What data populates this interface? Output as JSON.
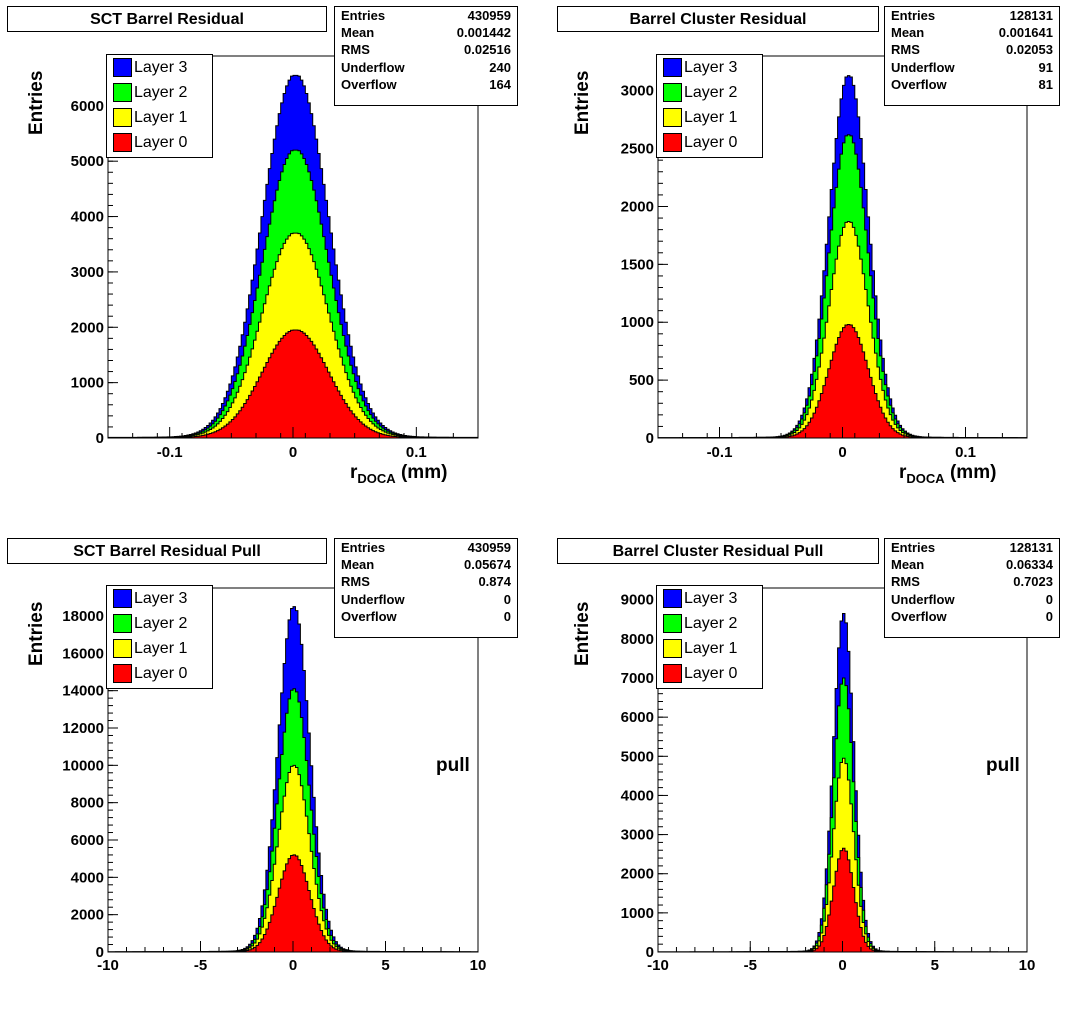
{
  "chart_data": [
    {
      "type": "area",
      "stacked": true,
      "title": "SCT Barrel Residual",
      "xlabel": "r",
      "xlabel_sub": "DOCA",
      "xlabel_unit": "(mm)",
      "ylabel": "Entries",
      "xlim": [
        -0.15,
        0.15
      ],
      "ylim": [
        0,
        6900
      ],
      "xticks": [
        -0.1,
        0,
        0.1
      ],
      "xtick_labels": [
        "-0.1",
        "0",
        "0.1"
      ],
      "yticks": [
        0,
        1000,
        2000,
        3000,
        4000,
        5000,
        6000
      ],
      "ytick_labels": [
        "0",
        "1000",
        "2000",
        "3000",
        "4000",
        "5000",
        "6000"
      ],
      "stats": [
        {
          "label": "Entries",
          "value": "430959"
        },
        {
          "label": "Mean",
          "value": "0.001442"
        },
        {
          "label": "RMS",
          "value": "0.02516"
        },
        {
          "label": "Underflow",
          "value": "240"
        },
        {
          "label": "Overflow",
          "value": "164"
        }
      ],
      "legend": [
        "Layer 3",
        "Layer 2",
        "Layer 1",
        "Layer 0"
      ],
      "center": 0.002,
      "width": 0.027,
      "series": [
        {
          "name": "Layer 0",
          "color": "#ff0000",
          "peak": 1950
        },
        {
          "name": "Layer 1",
          "color": "#ffff00",
          "peak": 3700
        },
        {
          "name": "Layer 2",
          "color": "#00ff00",
          "peak": 5200
        },
        {
          "name": "Layer 3",
          "color": "#0000ff",
          "peak": 6550
        }
      ]
    },
    {
      "type": "area",
      "stacked": true,
      "title": "Barrel Cluster Residual",
      "xlabel": "r",
      "xlabel_sub": "DOCA",
      "xlabel_unit": "(mm)",
      "ylabel": "Entries",
      "xlim": [
        -0.15,
        0.15
      ],
      "ylim": [
        0,
        3300
      ],
      "xticks": [
        -0.1,
        0,
        0.1
      ],
      "xtick_labels": [
        "-0.1",
        "0",
        "0.1"
      ],
      "yticks": [
        0,
        500,
        1000,
        1500,
        2000,
        2500,
        3000
      ],
      "ytick_labels": [
        "0",
        "500",
        "1000",
        "1500",
        "2000",
        "2500",
        "3000"
      ],
      "stats": [
        {
          "label": "Entries",
          "value": "128131"
        },
        {
          "label": "Mean",
          "value": "0.001641"
        },
        {
          "label": "RMS",
          "value": "0.02053"
        },
        {
          "label": "Underflow",
          "value": "91"
        },
        {
          "label": "Overflow",
          "value": "81"
        }
      ],
      "legend": [
        "Layer 3",
        "Layer 2",
        "Layer 1",
        "Layer 0"
      ],
      "center": 0.005,
      "width": 0.016,
      "series": [
        {
          "name": "Layer 0",
          "color": "#ff0000",
          "peak": 980
        },
        {
          "name": "Layer 1",
          "color": "#ffff00",
          "peak": 1870
        },
        {
          "name": "Layer 2",
          "color": "#00ff00",
          "peak": 2620
        },
        {
          "name": "Layer 3",
          "color": "#0000ff",
          "peak": 3130
        }
      ]
    },
    {
      "type": "area",
      "stacked": true,
      "title": "SCT Barrel Residual Pull",
      "xlabel": "pull",
      "xlabel_sub": "",
      "xlabel_unit": "",
      "ylabel": "Entries",
      "xlim": [
        -10,
        10
      ],
      "ylim": [
        0,
        19500
      ],
      "xticks": [
        -10,
        -5,
        0,
        5,
        10
      ],
      "xtick_labels": [
        "-10",
        "-5",
        "0",
        "5",
        "10"
      ],
      "yticks": [
        0,
        2000,
        4000,
        6000,
        8000,
        10000,
        12000,
        14000,
        16000,
        18000
      ],
      "ytick_labels": [
        "0",
        "2000",
        "4000",
        "6000",
        "8000",
        "10000",
        "12000",
        "14000",
        "16000",
        "18000"
      ],
      "stats": [
        {
          "label": "Entries",
          "value": "430959"
        },
        {
          "label": "Mean",
          "value": "0.05674"
        },
        {
          "label": "RMS",
          "value": "0.874"
        },
        {
          "label": "Underflow",
          "value": "0"
        },
        {
          "label": "Overflow",
          "value": "0"
        }
      ],
      "legend": [
        "Layer 3",
        "Layer 2",
        "Layer 1",
        "Layer 0"
      ],
      "center": 0.05,
      "width": 0.85,
      "series": [
        {
          "name": "Layer 0",
          "color": "#ff0000",
          "peak": 5200
        },
        {
          "name": "Layer 1",
          "color": "#ffff00",
          "peak": 10000
        },
        {
          "name": "Layer 2",
          "color": "#00ff00",
          "peak": 14100
        },
        {
          "name": "Layer 3",
          "color": "#0000ff",
          "peak": 18500
        }
      ]
    },
    {
      "type": "area",
      "stacked": true,
      "title": "Barrel Cluster Residual Pull",
      "xlabel": "pull",
      "xlabel_sub": "",
      "xlabel_unit": "",
      "ylabel": "Entries",
      "xlim": [
        -10,
        10
      ],
      "ylim": [
        0,
        9300
      ],
      "xticks": [
        -10,
        -5,
        0,
        5,
        10
      ],
      "xtick_labels": [
        "-10",
        "-5",
        "0",
        "5",
        "10"
      ],
      "yticks": [
        0,
        1000,
        2000,
        3000,
        4000,
        5000,
        6000,
        7000,
        8000,
        9000
      ],
      "ytick_labels": [
        "0",
        "1000",
        "2000",
        "3000",
        "4000",
        "5000",
        "6000",
        "7000",
        "8000",
        "9000"
      ],
      "stats": [
        {
          "label": "Entries",
          "value": "128131"
        },
        {
          "label": "Mean",
          "value": "0.06334"
        },
        {
          "label": "RMS",
          "value": "0.7023"
        },
        {
          "label": "Underflow",
          "value": "0"
        },
        {
          "label": "Overflow",
          "value": "0"
        }
      ],
      "legend": [
        "Layer 3",
        "Layer 2",
        "Layer 1",
        "Layer 0"
      ],
      "center": 0.06,
      "width": 0.55,
      "series": [
        {
          "name": "Layer 0",
          "color": "#ff0000",
          "peak": 2650
        },
        {
          "name": "Layer 1",
          "color": "#ffff00",
          "peak": 4950
        },
        {
          "name": "Layer 2",
          "color": "#00ff00",
          "peak": 7000
        },
        {
          "name": "Layer 3",
          "color": "#0000ff",
          "peak": 8650
        }
      ]
    }
  ]
}
